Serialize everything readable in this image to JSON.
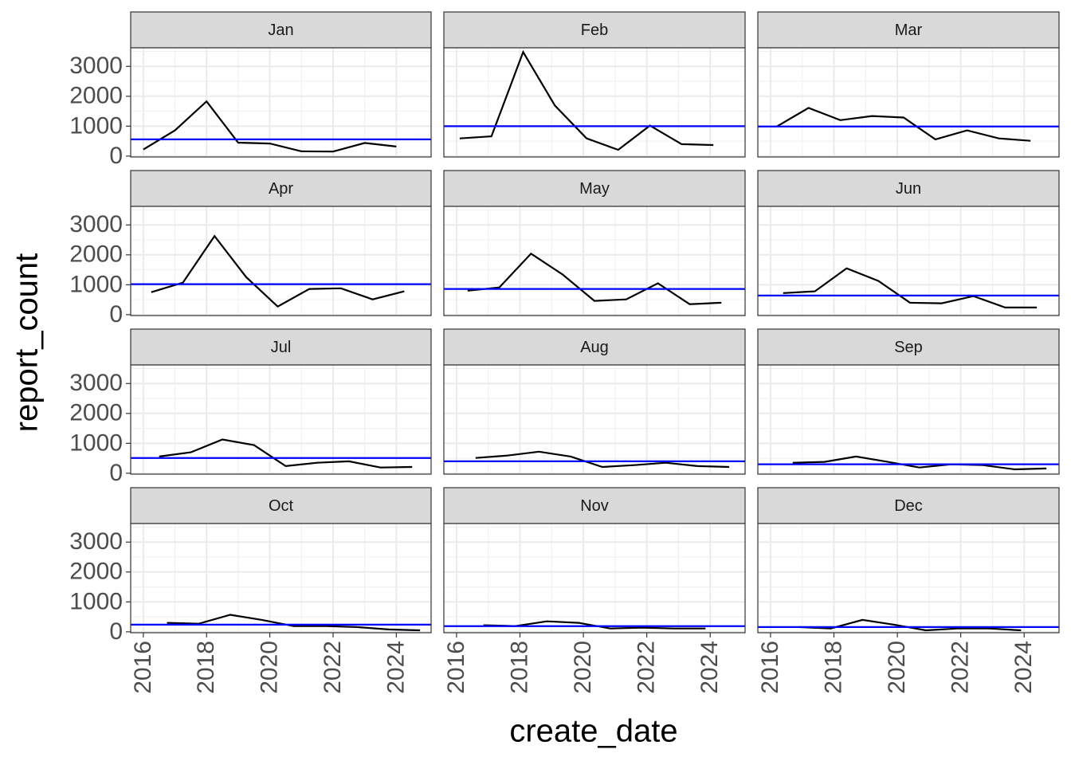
{
  "chart_data": {
    "type": "line",
    "xlabel": "create_date",
    "ylabel": "report_count",
    "line_color": "#000000",
    "hline_color": "#0000ff",
    "grid": true,
    "xlim": [
      2015.6,
      2025.1
    ],
    "xticks": [
      2016,
      2018,
      2020,
      2022,
      2024
    ],
    "ylim": [
      -30,
      3620
    ],
    "yticks": [
      0,
      1000,
      2000,
      3000
    ],
    "facets": [
      {
        "title": "Jan",
        "x": [
          2016.0,
          2017.0,
          2018.0,
          2019.0,
          2020.0,
          2021.0,
          2022.0,
          2023.0,
          2024.0
        ],
        "values": [
          220,
          860,
          1830,
          450,
          420,
          160,
          150,
          440,
          320
        ],
        "hline": 560
      },
      {
        "title": "Feb",
        "x": [
          2016.1,
          2017.1,
          2018.1,
          2019.1,
          2020.1,
          2021.1,
          2022.1,
          2023.1,
          2024.1
        ],
        "values": [
          590,
          660,
          3480,
          1690,
          590,
          210,
          1020,
          400,
          370
        ],
        "hline": 1000
      },
      {
        "title": "Mar",
        "x": [
          2016.2,
          2017.2,
          2018.2,
          2019.2,
          2020.2,
          2021.2,
          2022.2,
          2023.2,
          2024.2
        ],
        "values": [
          990,
          1610,
          1200,
          1340,
          1290,
          560,
          860,
          590,
          510
        ],
        "hline": 990
      },
      {
        "title": "Apr",
        "x": [
          2016.25,
          2017.25,
          2018.25,
          2019.25,
          2020.25,
          2021.25,
          2022.25,
          2023.25,
          2024.25
        ],
        "values": [
          750,
          1070,
          2630,
          1260,
          270,
          860,
          880,
          510,
          780
        ],
        "hline": 1020
      },
      {
        "title": "May",
        "x": [
          2016.35,
          2017.35,
          2018.35,
          2019.35,
          2020.35,
          2021.35,
          2022.35,
          2023.35,
          2024.35
        ],
        "values": [
          800,
          910,
          2040,
          1340,
          460,
          510,
          1050,
          350,
          400
        ],
        "hline": 860
      },
      {
        "title": "Jun",
        "x": [
          2016.4,
          2017.4,
          2018.4,
          2019.4,
          2020.4,
          2021.4,
          2022.4,
          2023.4,
          2024.4
        ],
        "values": [
          720,
          780,
          1550,
          1130,
          400,
          380,
          620,
          240,
          240
        ],
        "hline": 640
      },
      {
        "title": "Jul",
        "x": [
          2016.5,
          2017.5,
          2018.5,
          2019.5,
          2020.5,
          2021.5,
          2022.5,
          2023.5,
          2024.5
        ],
        "values": [
          560,
          700,
          1130,
          940,
          240,
          350,
          400,
          190,
          210
        ],
        "hline": 510
      },
      {
        "title": "Aug",
        "x": [
          2016.6,
          2017.6,
          2018.6,
          2019.6,
          2020.6,
          2021.6,
          2022.6,
          2023.6,
          2024.6
        ],
        "values": [
          510,
          590,
          720,
          560,
          210,
          270,
          350,
          240,
          210
        ],
        "hline": 400
      },
      {
        "title": "Sep",
        "x": [
          2016.7,
          2017.7,
          2018.7,
          2019.7,
          2020.7,
          2021.7,
          2022.7,
          2023.7,
          2024.7
        ],
        "values": [
          350,
          380,
          560,
          380,
          190,
          300,
          270,
          130,
          160
        ],
        "hline": 300
      },
      {
        "title": "Oct",
        "x": [
          2016.75,
          2017.75,
          2018.75,
          2019.75,
          2020.75,
          2021.75,
          2022.75,
          2023.75,
          2024.75
        ],
        "values": [
          300,
          270,
          570,
          400,
          190,
          190,
          160,
          80,
          50
        ],
        "hline": 240
      },
      {
        "title": "Nov",
        "x": [
          2016.85,
          2017.85,
          2018.85,
          2019.85,
          2020.85,
          2021.85,
          2022.85,
          2023.85
        ],
        "values": [
          220,
          190,
          350,
          300,
          110,
          140,
          110,
          110
        ],
        "hline": 190
      },
      {
        "title": "Dec",
        "x": [
          2016.9,
          2017.9,
          2018.9,
          2019.9,
          2020.9,
          2021.9,
          2022.9,
          2023.9
        ],
        "values": [
          160,
          110,
          400,
          240,
          50,
          110,
          110,
          50
        ],
        "hline": 160
      }
    ]
  }
}
